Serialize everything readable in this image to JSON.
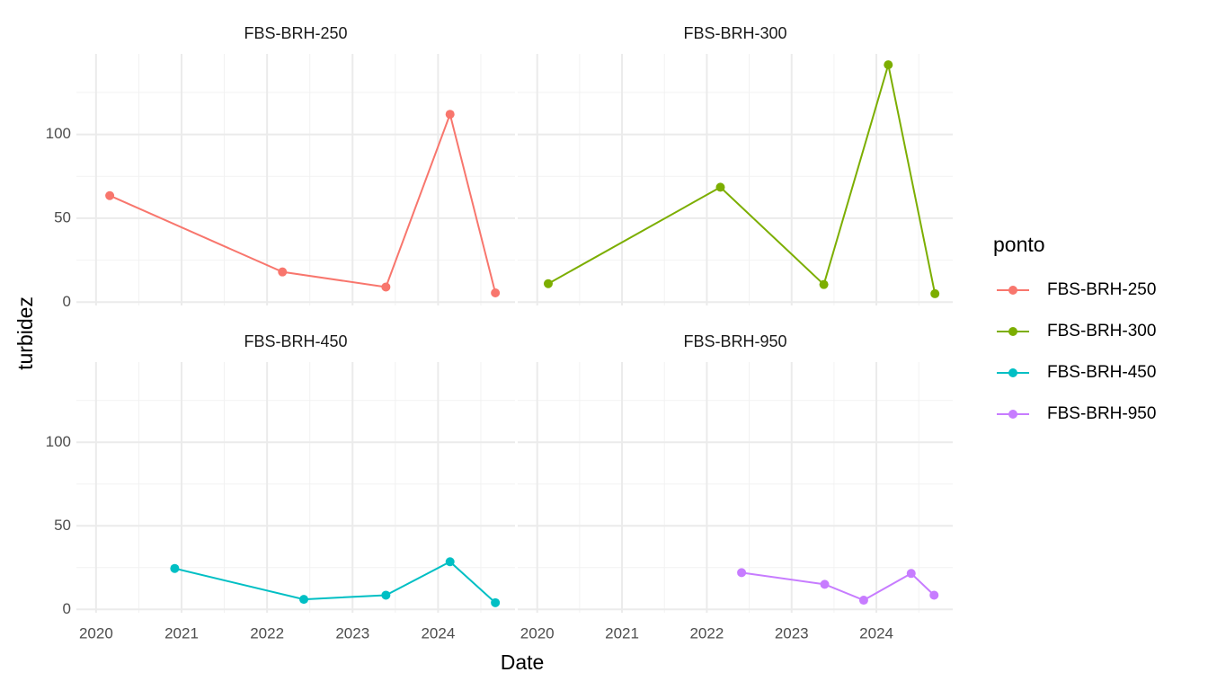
{
  "chart_data": {
    "type": "line",
    "facet": true,
    "x_label": "Date",
    "y_label": "turbidez",
    "legend_title": "ponto",
    "xlim": [
      2019.77,
      2024.9
    ],
    "xticks": [
      2020,
      2021,
      2022,
      2023,
      2024
    ],
    "ylim": [
      -2,
      148
    ],
    "yticks": [
      0,
      50,
      100
    ],
    "grid": true,
    "legend": "right",
    "series": [
      {
        "name": "FBS-BRH-250",
        "color": "#F8766D",
        "x": [
          2020.16,
          2022.18,
          2023.39,
          2024.14,
          2024.67
        ],
        "values": [
          63.5,
          18,
          9,
          112,
          5.5
        ]
      },
      {
        "name": "FBS-BRH-300",
        "color": "#7CAE00",
        "x": [
          2020.13,
          2022.16,
          2023.38,
          2024.14,
          2024.69
        ],
        "values": [
          11,
          68.5,
          10.5,
          141.5,
          5
        ]
      },
      {
        "name": "FBS-BRH-450",
        "color": "#00BFC4",
        "x": [
          2020.92,
          2022.43,
          2023.39,
          2024.14,
          2024.67
        ],
        "values": [
          24.5,
          6,
          8.5,
          28.5,
          4
        ]
      },
      {
        "name": "FBS-BRH-950",
        "color": "#C77CFF",
        "x": [
          2022.41,
          2023.39,
          2023.85,
          2024.41,
          2024.68
        ],
        "values": [
          22,
          15,
          5.5,
          21.5,
          8.5
        ]
      }
    ]
  }
}
